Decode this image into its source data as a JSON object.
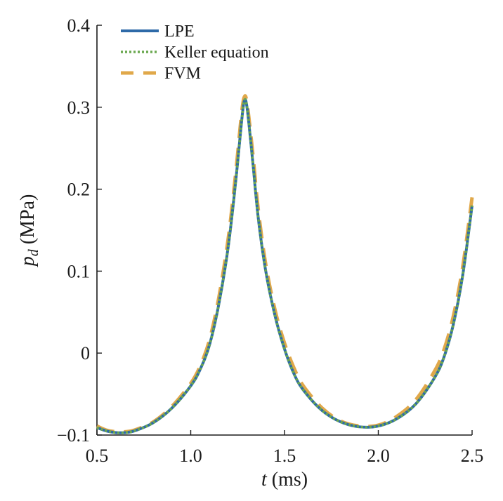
{
  "chart_data": {
    "type": "line",
    "title": "",
    "xlabel_var": "t",
    "xlabel_unit": " (ms)",
    "ylabel_var": "p",
    "ylabel_sub": "d",
    "ylabel_unit": " (MPa)",
    "xlim": [
      0.5,
      2.5
    ],
    "ylim": [
      -0.1,
      0.4
    ],
    "xticks": [
      0.5,
      1.0,
      1.5,
      2.0,
      2.5
    ],
    "xtick_labels": [
      "0.5",
      "1.0",
      "1.5",
      "2.0",
      "2.5"
    ],
    "yticks": [
      -0.1,
      0,
      0.1,
      0.2,
      0.3,
      0.4
    ],
    "ytick_labels": [
      "−0.1",
      "0",
      "0.1",
      "0.2",
      "0.3",
      "0.4"
    ],
    "grid": false,
    "legend_position": "top-left",
    "series": [
      {
        "name": "LPE",
        "color": "#2e6aa8",
        "style": "solid",
        "x": [
          0.5,
          0.55,
          0.6,
          0.65,
          0.7,
          0.8,
          0.9,
          1.0,
          1.05,
          1.1,
          1.15,
          1.2,
          1.24,
          1.27,
          1.285,
          1.3,
          1.33,
          1.36,
          1.4,
          1.45,
          1.5,
          1.55,
          1.6,
          1.7,
          1.8,
          1.9,
          2.0,
          2.1,
          2.2,
          2.3,
          2.35,
          2.4,
          2.45,
          2.5
        ],
        "y": [
          -0.091,
          -0.095,
          -0.097,
          -0.097,
          -0.095,
          -0.085,
          -0.067,
          -0.04,
          -0.02,
          0.01,
          0.06,
          0.13,
          0.21,
          0.28,
          0.307,
          0.3,
          0.235,
          0.165,
          0.1,
          0.045,
          0.005,
          -0.025,
          -0.045,
          -0.07,
          -0.084,
          -0.09,
          -0.089,
          -0.08,
          -0.062,
          -0.03,
          -0.005,
          0.035,
          0.095,
          0.18
        ]
      },
      {
        "name": "Keller equation",
        "color": "#6aa84f",
        "style": "dotted",
        "x": [
          0.5,
          0.55,
          0.6,
          0.65,
          0.7,
          0.8,
          0.9,
          1.0,
          1.05,
          1.1,
          1.15,
          1.2,
          1.24,
          1.27,
          1.285,
          1.3,
          1.33,
          1.36,
          1.4,
          1.45,
          1.5,
          1.55,
          1.6,
          1.7,
          1.8,
          1.9,
          2.0,
          2.1,
          2.2,
          2.3,
          2.35,
          2.4,
          2.45,
          2.5
        ],
        "y": [
          -0.091,
          -0.095,
          -0.097,
          -0.097,
          -0.095,
          -0.085,
          -0.067,
          -0.04,
          -0.02,
          0.01,
          0.06,
          0.13,
          0.21,
          0.28,
          0.307,
          0.3,
          0.235,
          0.165,
          0.1,
          0.045,
          0.005,
          -0.025,
          -0.045,
          -0.07,
          -0.084,
          -0.09,
          -0.089,
          -0.08,
          -0.062,
          -0.03,
          -0.005,
          0.035,
          0.095,
          0.18
        ]
      },
      {
        "name": "FVM",
        "color": "#e0a84a",
        "style": "dashed",
        "x": [
          0.5,
          0.55,
          0.6,
          0.65,
          0.7,
          0.8,
          0.9,
          1.0,
          1.05,
          1.1,
          1.15,
          1.2,
          1.24,
          1.27,
          1.285,
          1.3,
          1.33,
          1.36,
          1.4,
          1.45,
          1.5,
          1.55,
          1.6,
          1.7,
          1.8,
          1.9,
          2.0,
          2.1,
          2.2,
          2.3,
          2.35,
          2.4,
          2.45,
          2.5
        ],
        "y": [
          -0.089,
          -0.094,
          -0.096,
          -0.096,
          -0.094,
          -0.084,
          -0.065,
          -0.037,
          -0.016,
          0.016,
          0.068,
          0.14,
          0.22,
          0.29,
          0.312,
          0.305,
          0.245,
          0.175,
          0.108,
          0.052,
          0.012,
          -0.018,
          -0.04,
          -0.067,
          -0.083,
          -0.089,
          -0.088,
          -0.077,
          -0.057,
          -0.022,
          0.004,
          0.045,
          0.105,
          0.19
        ]
      }
    ]
  }
}
